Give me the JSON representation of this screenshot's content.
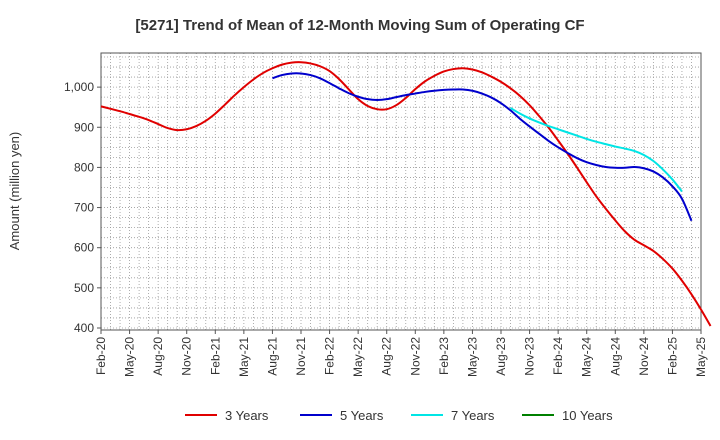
{
  "chart_data": {
    "type": "line",
    "title": "[5271]  Trend of Mean of 12-Month Moving Sum of Operating CF",
    "xlabel": "",
    "ylabel": "Amount (million yen)",
    "ylim": [
      395,
      1085
    ],
    "yticks": [
      400,
      500,
      600,
      700,
      800,
      900,
      1000
    ],
    "ytick_labels": [
      "400",
      "500",
      "600",
      "700",
      "800",
      "900",
      "1,000"
    ],
    "x_labels": [
      "Feb-20",
      "May-20",
      "Aug-20",
      "Nov-20",
      "Feb-21",
      "May-21",
      "Aug-21",
      "Nov-21",
      "Feb-22",
      "May-22",
      "Aug-22",
      "Nov-22",
      "Feb-23",
      "May-23",
      "Aug-23",
      "Nov-23",
      "Feb-24",
      "May-24",
      "Aug-24",
      "Nov-24",
      "Feb-25",
      "May-25"
    ],
    "grid": true,
    "legend_position": "bottom",
    "series": [
      {
        "name": "3 Years",
        "color": "#e00000",
        "start_index": 0,
        "values": [
          952,
          946,
          940,
          933,
          926,
          918,
          908,
          898,
          893,
          895,
          903,
          916,
          934,
          956,
          979,
          1000,
          1019,
          1035,
          1047,
          1056,
          1061,
          1062,
          1059,
          1052,
          1040,
          1020,
          995,
          970,
          953,
          945,
          945,
          955,
          973,
          995,
          1014,
          1028,
          1039,
          1045,
          1047,
          1044,
          1037,
          1026,
          1013,
          997,
          978,
          955,
          928,
          899,
          867,
          834,
          799,
          763,
          728,
          697,
          668,
          641,
          620,
          606,
          592,
          572,
          548,
          518,
          484,
          446,
          405
        ]
      },
      {
        "name": "5 Years",
        "color": "#0000cc",
        "start_index": 18,
        "values": [
          1022,
          1030,
          1034,
          1034,
          1030,
          1022,
          1010,
          997,
          985,
          976,
          970,
          968,
          970,
          975,
          980,
          984,
          988,
          991,
          993,
          994,
          994,
          991,
          984,
          974,
          960,
          942,
          921,
          902,
          884,
          866,
          850,
          836,
          823,
          813,
          806,
          801,
          799,
          799,
          801,
          798,
          790,
          775,
          753,
          722,
          667
        ]
      },
      {
        "name": "7 Years",
        "color": "#00e5e5",
        "start_index": 43,
        "values": [
          948,
          934,
          922,
          912,
          903,
          895,
          887,
          879,
          871,
          864,
          858,
          852,
          847,
          841,
          831,
          816,
          795,
          770,
          740
        ]
      },
      {
        "name": "10 Years",
        "color": "#008000",
        "start_index": 0,
        "values": []
      }
    ]
  }
}
